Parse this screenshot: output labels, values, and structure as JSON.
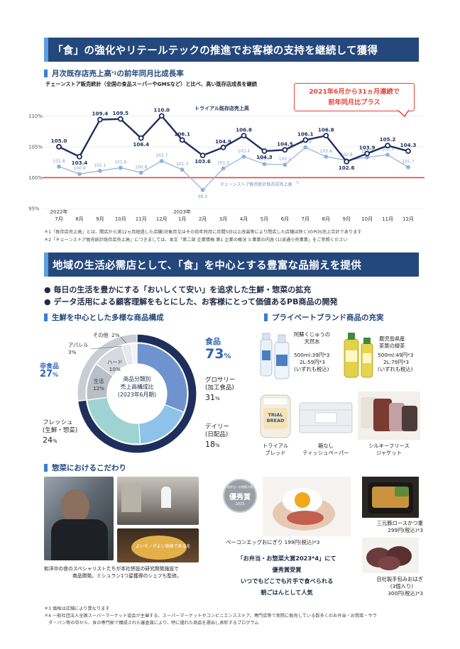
{
  "section1": {
    "banner": "「食」の強化やリテールテックの推進でお客様の支持を継続して獲得",
    "chart_title": "月次既存店売上高",
    "chart_title_note": "*1",
    "chart_title_suffix": "の前年同月比成長率",
    "chart_subtitle": "チェーンストア販売統計（全国の食品スーパーやGMSなど）と比べ、高い既存店成長を継続",
    "callout": [
      "2021年6月から31ヵ月連続で",
      "前年同月比プラス"
    ],
    "series_label_trial": "トライアル既存店売上高",
    "series_label_chain": "チェーンストア販売統計既存店売上高",
    "series_label_chain_note": "*2",
    "notes": [
      "＊1「既存店売上高」とは、開店から満12ヵ月経過した店舗(対象月又はその前年同月に月間5日以上改装等により閉店した店舗は除く)のPOS売上合計であります",
      "＊2「チェーンストア販売統計既存店売上高」につきましては、本文「第二部 企業情報 第1 企業の概況 3.事業の内容 (1)流通小売事業」をご参照ください"
    ]
  },
  "chart_data": [
    {
      "type": "line",
      "x": [
        "7月",
        "8月",
        "9月",
        "10月",
        "11月",
        "12月",
        "1月",
        "2月",
        "3月",
        "4月",
        "5月",
        "6月",
        "7月",
        "8月",
        "9月",
        "10月",
        "11月",
        "12月"
      ],
      "x_year_labels": [
        {
          "index": 0,
          "label": "2022年"
        },
        {
          "index": 6,
          "label": "2023年"
        }
      ],
      "ylim": [
        95,
        112
      ],
      "yticks": [
        95,
        100,
        105,
        110
      ],
      "ytick_labels": [
        "95%",
        "100%",
        "105%",
        "110%"
      ],
      "reference_line": 100,
      "series": [
        {
          "name": "トライアル既存店売上高",
          "color": "#1f2f5c",
          "values": [
            105.0,
            103.4,
            109.4,
            109.5,
            106.4,
            110.0,
            106.1,
            103.6,
            104.9,
            106.8,
            104.3,
            104.5,
            106.1,
            106.8,
            102.6,
            103.9,
            105.2,
            104.3
          ]
        },
        {
          "name": "チェーンストア販売統計既存店売上高",
          "color": "#8fb1dc",
          "values": [
            101.8,
            100.6,
            101.1,
            101.6,
            100.8,
            102.7,
            101.3,
            98.0,
            101.5,
            103.4,
            102.2,
            102.1,
            104.9,
            103.4,
            102.8,
            103.3,
            103.7,
            101.7
          ]
        }
      ]
    },
    {
      "type": "pie",
      "title": [
        "商品分類別",
        "売上高構成比",
        "(2023年6月期)"
      ],
      "outer": [
        {
          "name": "食品",
          "value": 73,
          "color": "#1f2f5c"
        },
        {
          "name": "非食品",
          "value": 27,
          "color": "#c9ced6"
        }
      ],
      "inner": [
        {
          "name": "グロサリー(加工食品)",
          "value": 31,
          "color": "#6f93cf"
        },
        {
          "name": "デイリー(日配品)",
          "value": 18,
          "color": "#8ec2e8"
        },
        {
          "name": "フレッシュ(生鮮・惣菜)",
          "value": 24,
          "color": "#9fd2d3"
        },
        {
          "name": "生活",
          "value": 12,
          "color": "#b9bfc8"
        },
        {
          "name": "ハード",
          "value": 10,
          "color": "#d6dae0"
        },
        {
          "name": "アパレル",
          "value": 3,
          "color": "#e6e9ed"
        },
        {
          "name": "その他",
          "value": 2,
          "color": "#f2f3f5"
        }
      ]
    }
  ],
  "section2": {
    "banner": "地域の生活必需店として、「食」を中心とする豊富な品揃えを提供",
    "bullets": [
      "毎日の生活を豊かにする「おいしくて安い」を追求した生鮮・惣菜の拡充",
      "データ活用による顧客理解をもとにした、お客様にとって価値あるPB商品の開発"
    ],
    "products_title": "生鮮を中心とした多様な商品構成",
    "pie_labels": {
      "food_name": "食品",
      "food_value": "73",
      "food_unit": "%",
      "nonfood_name": "非食品",
      "nonfood_value": "27",
      "nonfood_unit": "%",
      "grocery_name": "グロサリー",
      "grocery_sub": "(加工食品)",
      "grocery_value": "31",
      "grocery_unit": "%",
      "daily_name": "デイリー",
      "daily_sub": "(日配品)",
      "daily_value": "18",
      "daily_unit": "%",
      "fresh_name": "フレッシュ",
      "fresh_sub": "(生鮮・惣菜)",
      "fresh_value": "24",
      "fresh_unit": "%",
      "life_name": "生活",
      "life_value": "12%",
      "hard_name": "ハード",
      "hard_value": "10%",
      "apparel_name": "アパレル",
      "apparel_value": "3%",
      "other_name": "その他",
      "other_value": "2%"
    },
    "pb_title": "プライベートブランド商品の充実",
    "pb_items": [
      {
        "name": [
          "阿蘇くじゅうの",
          "天然水"
        ],
        "price": [
          "500ml:39円*3",
          "2L:59円*3",
          "(いずれも税込)"
        ]
      },
      {
        "name": [
          "鹿児島県産",
          "茶葉の緑茶"
        ],
        "price": [
          "500ml:49円*3",
          "2L:79円*3",
          "(いずれも税込)"
        ]
      },
      {
        "name": [
          "トライアル",
          "ブレッド"
        ]
      },
      {
        "name": [
          "箱なし",
          "ティッシュペーパー"
        ]
      },
      {
        "name": [
          "シルキーフリース",
          "ジャケット"
        ]
      }
    ],
    "bread_bag_text": [
      "TRIAL",
      "BREAD"
    ],
    "deli_title": "惣菜におけるこだわり",
    "photo_overlay": "よいモノがよい価格であるを",
    "chef_caption": [
      "和洋中の食のスペシャリストたちが本社併設の研究開発施設で",
      "商品開発。ミシュラン1つ星獲得のシェフも監修。"
    ],
    "award_badge": {
      "top": "お弁当・お惣菜大賞",
      "main": "優秀賞",
      "year": "2023"
    },
    "onigiri_caption": "ベーコンエッグおにぎり 199円(税込)*3",
    "award_lines": [
      "「お弁当・お惣菜大賞2023*4」にて",
      "優秀賞受賞",
      "いつでもどこでも片手で食べられる",
      "朝ごはんとして人気"
    ],
    "katsuju": [
      "三元豚ロースかつ重",
      "299円(税込)*3"
    ],
    "ohagi": [
      "自社製手包みおはぎ",
      "(3個入り)",
      "300円(税込)*3"
    ],
    "notes": [
      "＊3 価格は店舗により異なります",
      "＊4 一般社団法人全国スーパーマーケット協会が主催する、スーパーマーケットやコンビニエンスストア、専門店等で実際に販売している数多くのお弁当・お惣菜・サラ",
      "ダ・パン等の中から、食の専門家で構成された審査員により、特に優れた商品を選出し表彰するプログラム"
    ]
  }
}
